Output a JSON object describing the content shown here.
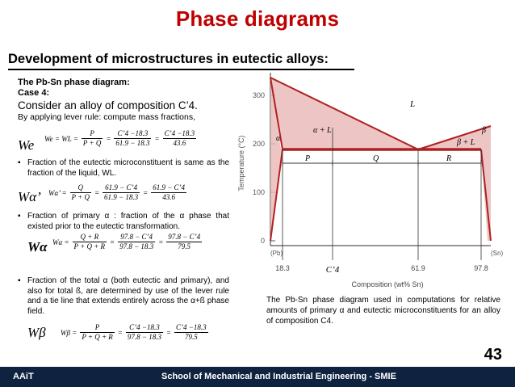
{
  "slide": {
    "title": "Phase diagrams",
    "subtitle": "Development of microstructures in eutectic alloys:",
    "page_number": "43"
  },
  "left": {
    "heading1": "The Pb-Sn phase diagram:",
    "heading2": "Case 4:",
    "consider": "Consider an alloy of composition C’4.",
    "lever": "By applying lever rule: compute mass fractions,",
    "bullet1": "Fraction of the eutectic microconstituent is same as the fraction of the liquid, WL.",
    "bullet2": "Fraction of primary α : fraction of the α phase that existed prior to the eutectic transformation.",
    "bullet3": "Fraction of the total α (both eutectic and primary), and also for total ß, are determined by use of the lever rule and a tie line that extends entirely across the α+ß phase field."
  },
  "equations": {
    "we": {
      "label": "We",
      "lhs": "We = WL =",
      "f1_num": "P",
      "f1_den": "P + Q",
      "f2_num": "C’4 −18.3",
      "f2_den": "61.9 − 18.3",
      "f3_num": "C’4 −18.3",
      "f3_den": "43.6"
    },
    "wa_primary": {
      "label": "Wα’",
      "lhs": "Wα’ =",
      "f1_num": "Q",
      "f1_den": "P + Q",
      "f2_num": "61.9 − C’4",
      "f2_den": "61.9 − 18.3",
      "f3_num": "61.9 − C’4",
      "f3_den": "43.6"
    },
    "wa_total": {
      "label": "Wα",
      "lhs": "Wα =",
      "f1_num": "Q + R",
      "f1_den": "P + Q + R",
      "f2_num": "97.8 − C’4",
      "f2_den": "97.8 − 18.3",
      "f3_num": "97.8 − C’4",
      "f3_den": "79.5"
    },
    "wb": {
      "label": "Wβ",
      "lhs": "Wβ =",
      "f1_num": "P",
      "f1_den": "P + Q + R",
      "f2_num": "C’4 −18.3",
      "f2_den": "97.8 − 18.3",
      "f3_num": "C’4 −18.3",
      "f3_den": "79.5"
    }
  },
  "diagram": {
    "y_axis_label": "Temperature (°C)",
    "x_axis_label": "Composition (wt% Sn)",
    "y_ticks": [
      "0",
      "100",
      "200",
      "300"
    ],
    "x_left_label": "(Pb)",
    "x_right_label": "(Sn)",
    "x_ticks": [
      "18.3",
      "C’4",
      "61.9",
      "97.8"
    ],
    "regions": {
      "liquid": "L",
      "alpha": "α",
      "alpha_liquid": "α + L",
      "beta_liquid": "β + L",
      "beta": "β"
    },
    "segments": [
      "P",
      "Q",
      "R"
    ],
    "colors": {
      "region_fill": "#e8b6b6",
      "line": "#b02020"
    }
  },
  "caption": "The Pb-Sn phase diagram used in computations for relative amounts of primary α and eutectic microconstituents for an alloy of composition C4.",
  "footer": {
    "left": "AAiT",
    "center": "School of Mechanical and Industrial Engineering - SMIE",
    "bg_color": "#0f2340"
  }
}
